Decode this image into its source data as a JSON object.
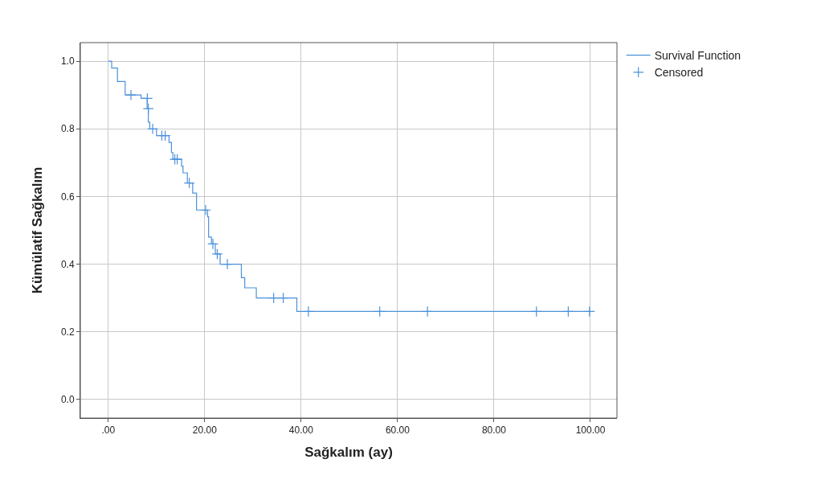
{
  "chart_data": {
    "type": "step",
    "xlabel": "Sağkalım (ay)",
    "ylabel": "Kümülatif Sağkalım",
    "series": [
      {
        "name": "Survival Function",
        "color": "#4b92db",
        "x": [
          0,
          0.7,
          1.9,
          3.5,
          6.8,
          8.05,
          8.3,
          8.6,
          10,
          12.6,
          13.1,
          13.4,
          15.2,
          15.5,
          16.4,
          17.5,
          18.3,
          20.6,
          20.8,
          21.4,
          22.2,
          23.2,
          27.6,
          28.3,
          30.7,
          39.1,
          100
        ],
        "values": [
          1.0,
          0.98,
          0.94,
          0.9,
          0.89,
          0.86,
          0.82,
          0.8,
          0.78,
          0.76,
          0.73,
          0.71,
          0.69,
          0.67,
          0.64,
          0.61,
          0.56,
          0.54,
          0.48,
          0.46,
          0.43,
          0.4,
          0.36,
          0.33,
          0.3,
          0.26,
          0.26
        ]
      },
      {
        "name": "Censored",
        "type": "scatter",
        "marker": "cross",
        "color": "#4b92db",
        "x": [
          4.7,
          8.1,
          8.3,
          9.2,
          11.1,
          11.8,
          13.8,
          14.3,
          16.8,
          20.2,
          21.7,
          22.6,
          24.7,
          34.3,
          36.3,
          41.5,
          56.3,
          66.2,
          88.8,
          95.4,
          99.8
        ],
        "values": [
          0.9,
          0.89,
          0.86,
          0.8,
          0.78,
          0.78,
          0.71,
          0.71,
          0.64,
          0.56,
          0.46,
          0.43,
          0.4,
          0.3,
          0.3,
          0.26,
          0.26,
          0.26,
          0.26,
          0.26,
          0.26
        ]
      }
    ],
    "xlim": [
      -5.8,
      105.5
    ],
    "ylim": [
      -0.055,
      1.055
    ],
    "xticks": [
      {
        "value": 0,
        "label": ".00"
      },
      {
        "value": 20,
        "label": "20.00"
      },
      {
        "value": 40,
        "label": "40.00"
      },
      {
        "value": 60,
        "label": "60.00"
      },
      {
        "value": 80,
        "label": "80.00"
      },
      {
        "value": 100,
        "label": "100.00"
      }
    ],
    "yticks": [
      {
        "value": 0,
        "label": "0.0"
      },
      {
        "value": 0.2,
        "label": "0.2"
      },
      {
        "value": 0.4,
        "label": "0.4"
      },
      {
        "value": 0.6,
        "label": "0.6"
      },
      {
        "value": 0.8,
        "label": "0.8"
      },
      {
        "value": 1.0,
        "label": "1.0"
      }
    ],
    "grid": true,
    "legend": "top right"
  }
}
